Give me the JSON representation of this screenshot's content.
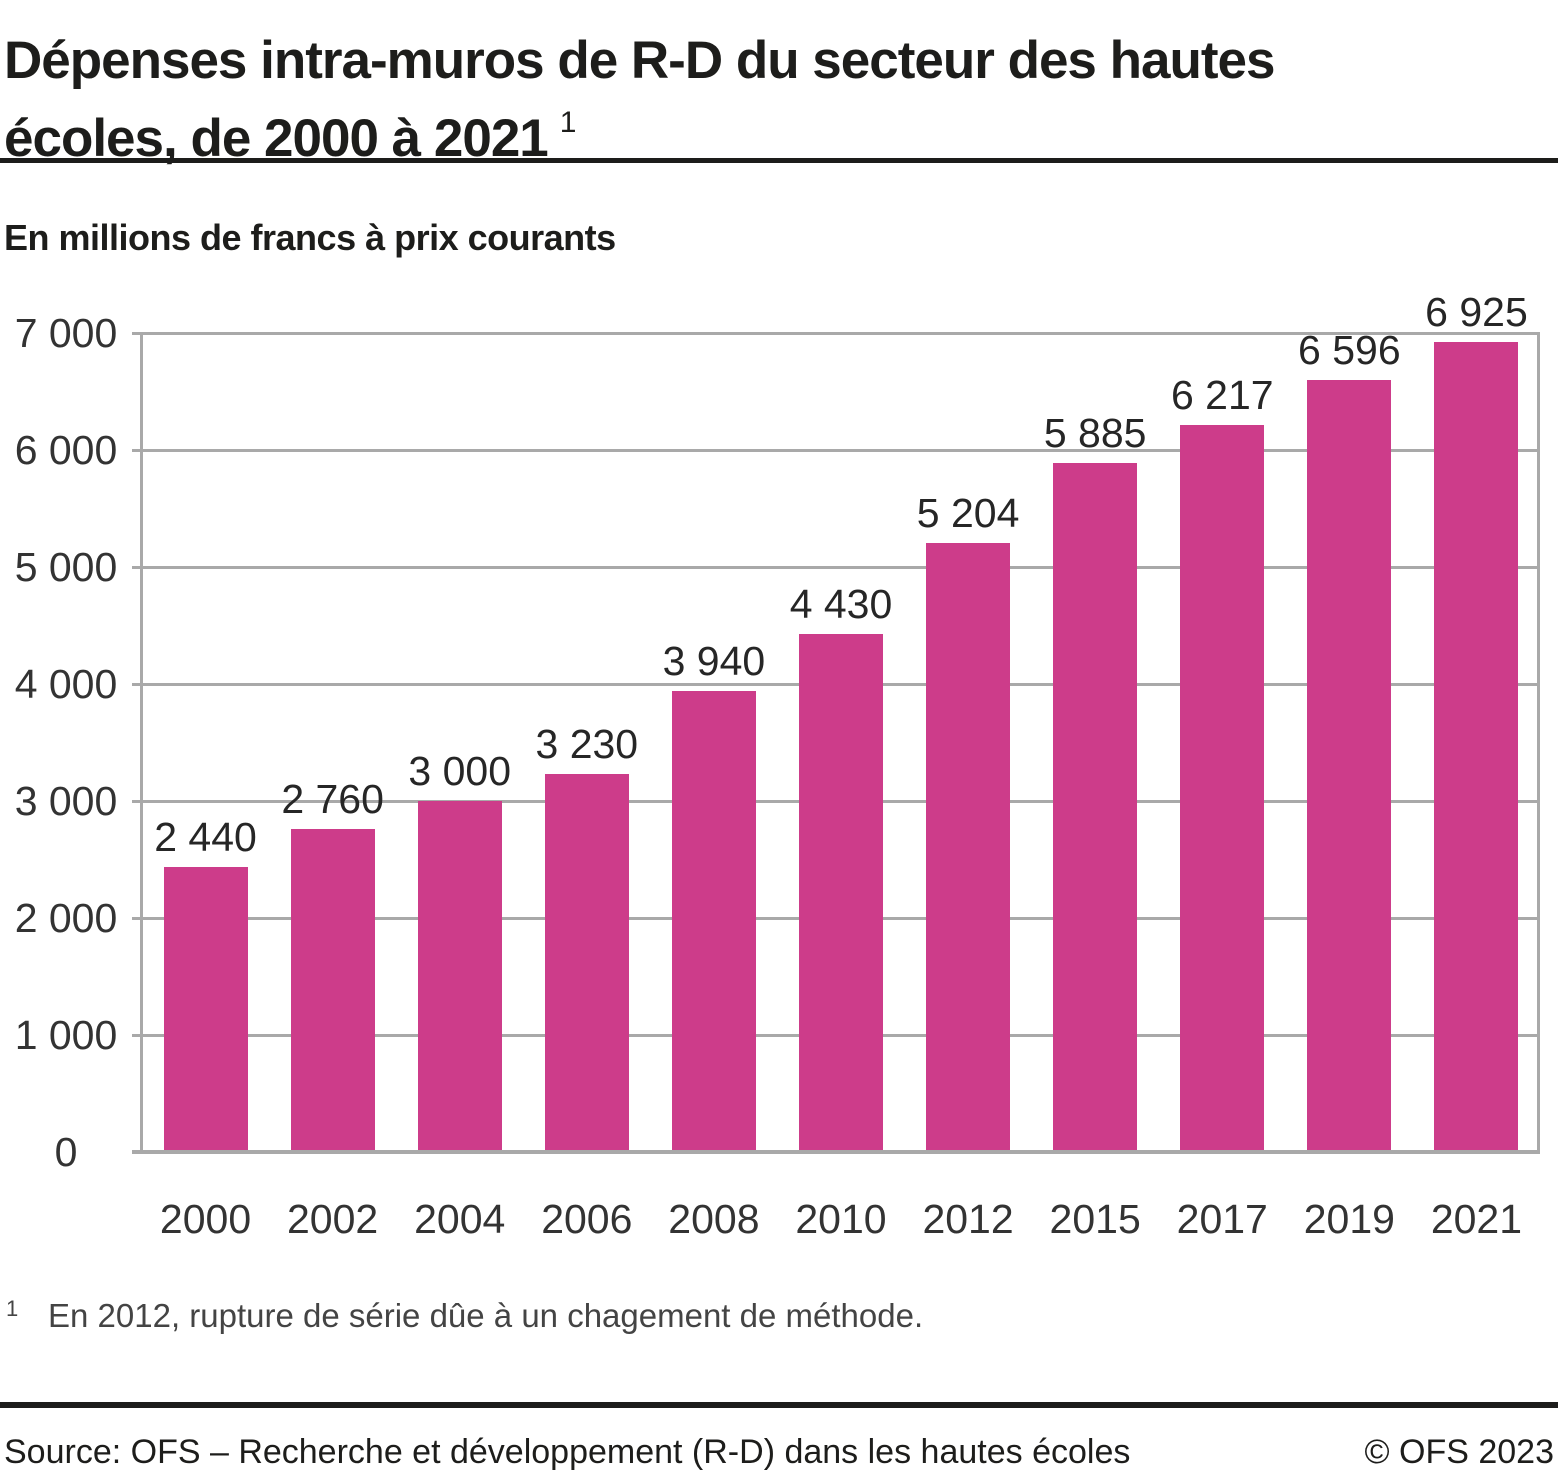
{
  "header": {
    "title": "Dépenses intra-muros de R-D du secteur des hautes\nécoles, de 2000 à 2021",
    "title_footnote_marker": "1",
    "subtitle": "En millions de francs à prix courants"
  },
  "chart_data": {
    "type": "bar",
    "categories": [
      "2000",
      "2002",
      "2004",
      "2006",
      "2008",
      "2010",
      "2012",
      "2015",
      "2017",
      "2019",
      "2021"
    ],
    "values": [
      2440,
      2760,
      3000,
      3230,
      3940,
      4430,
      5204,
      5885,
      6217,
      6596,
      6925
    ],
    "value_labels": [
      "2 440",
      "2 760",
      "3 000",
      "3 230",
      "3 940",
      "4 430",
      "5 204",
      "5 885",
      "6 217",
      "6 596",
      "6 925"
    ],
    "title": "Dépenses intra-muros de R-D du secteur des hautes écoles, de 2000 à 2021",
    "subtitle": "En millions de francs à prix courants",
    "xlabel": "",
    "ylabel": "",
    "ylim": [
      0,
      7000
    ],
    "ytick_step": 1000,
    "ytick_labels": [
      "0",
      "1 000",
      "2 000",
      "3 000",
      "4 000",
      "5 000",
      "6 000",
      "7 000"
    ],
    "grid": true,
    "legend": "none"
  },
  "footnote": {
    "marker": "1",
    "text": "En 2012, rupture de série dûe à un chagement de méthode."
  },
  "footer": {
    "source": "Source: OFS – Recherche et développement (R-D) dans les hautes écoles",
    "copyright": "© OFS 2023"
  },
  "colors": {
    "bar": "#CD3C8A",
    "grid": "#A9A9A9",
    "text": "#1D1D1B",
    "footnote_text": "#444444"
  }
}
